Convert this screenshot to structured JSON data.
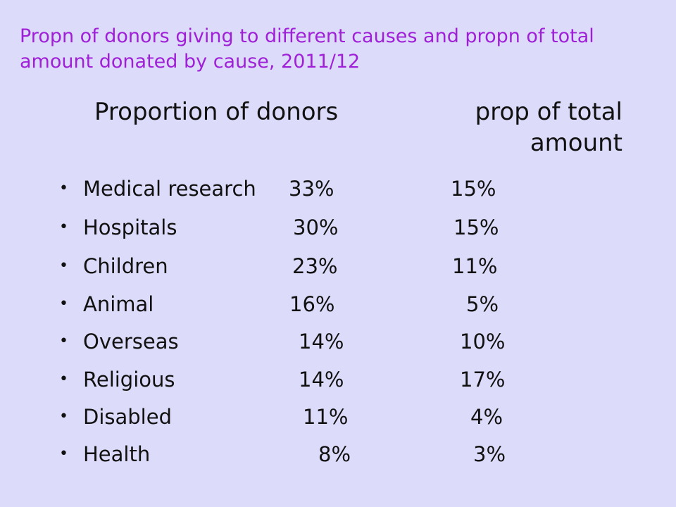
{
  "slide": {
    "title": "Propn of donors giving to different causes and propn of total amount donated by cause, 2011/12",
    "header_left": "Proportion of donors",
    "header_right": "prop of total amount",
    "bullet_glyph": "•"
  },
  "rows": [
    {
      "cause": "Medical research",
      "donors": "33%",
      "amount": "15%"
    },
    {
      "cause": "Hospitals",
      "donors": "30%",
      "amount": "15%"
    },
    {
      "cause": "Children",
      "donors": "23%",
      "amount": "11%"
    },
    {
      "cause": "Animal",
      "donors": "16%",
      "amount": "5%"
    },
    {
      "cause": "Overseas",
      "donors": "14%",
      "amount": "10%"
    },
    {
      "cause": "Religious",
      "donors": "14%",
      "amount": "17%"
    },
    {
      "cause": "Disabled",
      "donors": "11%",
      "amount": "4%"
    },
    {
      "cause": "Health",
      "donors": "8%",
      "amount": "3%"
    }
  ]
}
